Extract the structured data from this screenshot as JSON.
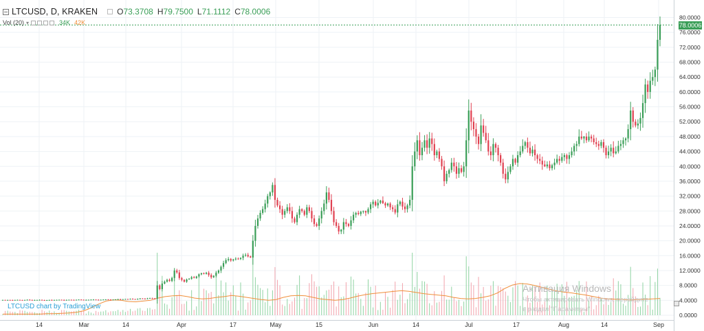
{
  "header": {
    "symbol": "LTCUSD, D, KRAKEN",
    "o_label": "O",
    "o_value": "73.3708",
    "h_label": "H",
    "h_value": "79.7500",
    "l_label": "L",
    "l_value": "71.1112",
    "c_label": "C",
    "c_value": "78.0006"
  },
  "volume_indicator": {
    "label": "Vol (20)",
    "value1": "34K",
    "value2": "42K"
  },
  "last_price_label": "78.0006",
  "branding": "LTCUSD chart by TradingView",
  "watermark": {
    "line1": "Активация Windows",
    "line2": "Чтобы активировать Windows, перейдите",
    "line3": "в раздел \"Параметры\"."
  },
  "colors": {
    "up": "#3a9e57",
    "down": "#e04050",
    "volume_ma": "#f08f3a",
    "grid": "#eef2f6",
    "brand": "#2a9fd6"
  },
  "chart_data": {
    "type": "candlestick",
    "title": "LTCUSD, D, KRAKEN",
    "x_axis_ticks": [
      "14",
      "Mar",
      "14",
      "Apr",
      "17",
      "May",
      "15",
      "Jun",
      "14",
      "Jul",
      "17",
      "Aug",
      "14",
      "Sep"
    ],
    "y_axis_ticks": [
      "0.0000",
      "4.0000",
      "8.0000",
      "12.0000",
      "16.0000",
      "20.0000",
      "24.0000",
      "28.0000",
      "32.0000",
      "36.0000",
      "40.0000",
      "44.0000",
      "48.0000",
      "52.0000",
      "56.0000",
      "60.0000",
      "64.0000",
      "68.0000",
      "72.0000",
      "76.0000",
      "80.0000"
    ],
    "ylim": [
      0,
      80
    ],
    "grid": true,
    "last_close": 78.0006,
    "closes": [
      4.1,
      4.05,
      4.1,
      4.08,
      4.05,
      4.1,
      4.12,
      4.08,
      4.05,
      4.1,
      4.15,
      4.1,
      4.05,
      4.08,
      4.1,
      4.12,
      4.06,
      4.0,
      4.05,
      4.1,
      4.08,
      4.1,
      4.12,
      4.15,
      4.1,
      4.05,
      4.1,
      4.15,
      4.12,
      4.1,
      4.15,
      4.2,
      4.15,
      4.1,
      4.12,
      4.15,
      4.18,
      4.2,
      4.15,
      4.1,
      4.15,
      4.2,
      4.25,
      4.2,
      4.15,
      4.2,
      4.25,
      4.3,
      4.25,
      4.3,
      4.35,
      4.3,
      4.4,
      4.35,
      4.3,
      4.4,
      4.5,
      4.45,
      4.4,
      4.5,
      4.6,
      4.5,
      4.4,
      8.0,
      7.0,
      8.5,
      9.0,
      9.5,
      9.2,
      10.0,
      12.0,
      11.5,
      10.0,
      9.5,
      9.0,
      9.6,
      9.8,
      10.2,
      10.0,
      10.4,
      11.0,
      11.3,
      11.1,
      11.4,
      10.8,
      10.2,
      10.6,
      11.4,
      12.0,
      13.0,
      14.0,
      14.8,
      15.1,
      14.7,
      15.0,
      15.2,
      15.1,
      15.4,
      16.0,
      16.2,
      15.8,
      15.5,
      20.0,
      24.0,
      26.0,
      27.5,
      28.5,
      30.0,
      32.0,
      33.0,
      35.0,
      31.0,
      29.5,
      28.5,
      27.0,
      28.0,
      29.0,
      28.0,
      26.0,
      25.0,
      27.0,
      28.5,
      28.0,
      27.0,
      29.0,
      28.0,
      26.0,
      24.5,
      24.0,
      26.0,
      28.0,
      30.0,
      33.0,
      31.0,
      28.0,
      25.0,
      24.0,
      22.5,
      23.0,
      25.0,
      24.5,
      24.0,
      25.5,
      27.0,
      27.5,
      27.2,
      27.8,
      28.0,
      27.6,
      28.5,
      29.8,
      30.5,
      29.5,
      30.2,
      30.8,
      30.1,
      29.5,
      30.0,
      29.0,
      28.5,
      27.6,
      29.8,
      30.5,
      29.2,
      28.5,
      29.5,
      31.0,
      40.0,
      44.0,
      47.0,
      43.0,
      45.0,
      47.0,
      45.0,
      47.5,
      46.0,
      43.0,
      44.0,
      42.0,
      40.0,
      36.0,
      38.0,
      39.0,
      41.0,
      40.0,
      38.0,
      39.5,
      38.5,
      40.0,
      47.0,
      55.0,
      52.0,
      50.0,
      48.0,
      46.0,
      51.0,
      49.0,
      47.0,
      44.0,
      43.0,
      46.0,
      45.0,
      43.0,
      41.0,
      38.0,
      36.5,
      38.5,
      40.0,
      42.0,
      41.0,
      43.0,
      44.0,
      45.5,
      46.5,
      45.0,
      43.5,
      44.5,
      43.0,
      42.0,
      41.5,
      40.5,
      40.0,
      40.5,
      39.5,
      40.3,
      41.0,
      42.0,
      41.5,
      42.5,
      43.0,
      42.0,
      43.0,
      44.0,
      45.5,
      46.0,
      48.0,
      47.5,
      48.0,
      47.0,
      48.0,
      47.5,
      46.5,
      46.0,
      45.5,
      46.5,
      45.0,
      43.0,
      44.0,
      45.0,
      43.5,
      44.0,
      45.5,
      46.0,
      47.0,
      47.5,
      50.0,
      55.0,
      52.0,
      51.0,
      51.5,
      53.0,
      57.0,
      62.0,
      60.0,
      63.0,
      64.0,
      66.0,
      74.0,
      78.0006
    ],
    "volume_ma_path": [
      0.3,
      0.3,
      0.3,
      0.3,
      0.3,
      0.3,
      0.4,
      0.4,
      0.5,
      0.6,
      0.8,
      1.2,
      2.0,
      3.0,
      3.8,
      4.1,
      4.0,
      3.7,
      3.6,
      3.8,
      4.0,
      4.6,
      5.0,
      5.2,
      5.3,
      5.0,
      4.6,
      4.4,
      4.5,
      4.8,
      5.0,
      5.3,
      5.1,
      4.8,
      4.5,
      4.2,
      4.0,
      4.2,
      4.8,
      5.2,
      5.3,
      5.2,
      4.8,
      4.4,
      4.2,
      4.0,
      4.2,
      4.6,
      5.1,
      5.5,
      5.8,
      6.0,
      6.2,
      6.4,
      6.6,
      6.4,
      6.1,
      5.8,
      5.6,
      5.4,
      5.2,
      4.8,
      4.5,
      4.4,
      4.5,
      4.8,
      5.2,
      6.0,
      7.2,
      8.1,
      8.5,
      8.4,
      8.0,
      7.5,
      7.0,
      6.5,
      6.2,
      6.0,
      5.7,
      5.4,
      5.0,
      4.6,
      4.4,
      4.3,
      4.2,
      4.1,
      4.2,
      4.3,
      4.4,
      4.5
    ]
  }
}
